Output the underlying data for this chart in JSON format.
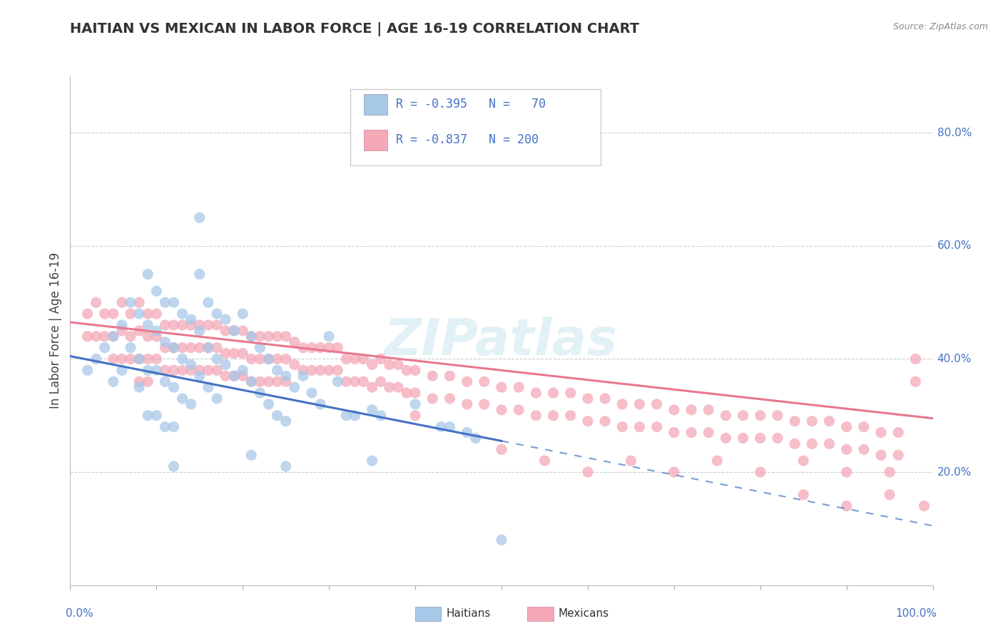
{
  "title": "HAITIAN VS MEXICAN IN LABOR FORCE | AGE 16-19 CORRELATION CHART",
  "source": "Source: ZipAtlas.com",
  "ylabel": "In Labor Force | Age 16-19",
  "right_ytick_labels": [
    "80.0%",
    "60.0%",
    "40.0%",
    "20.0%"
  ],
  "right_ytick_vals": [
    0.8,
    0.6,
    0.4,
    0.2
  ],
  "haitian_color": "#a8c8e8",
  "mexican_color": "#f4a8b8",
  "haitian_line_color": "#4472c4",
  "mexican_line_color": "#e87890",
  "watermark": "ZIPatlas",
  "haitian_line": {
    "x0": 0.0,
    "y0": 0.405,
    "x1": 0.5,
    "y1": 0.255,
    "x_dash_end": 1.0
  },
  "mexican_line": {
    "x0": 0.0,
    "y0": 0.465,
    "x1": 1.0,
    "y1": 0.295
  },
  "ylim": [
    0.0,
    0.9
  ],
  "xlim": [
    0.0,
    1.0
  ],
  "haitian_dots": [
    [
      0.02,
      0.38
    ],
    [
      0.03,
      0.4
    ],
    [
      0.04,
      0.42
    ],
    [
      0.05,
      0.44
    ],
    [
      0.05,
      0.36
    ],
    [
      0.06,
      0.46
    ],
    [
      0.06,
      0.38
    ],
    [
      0.07,
      0.5
    ],
    [
      0.07,
      0.42
    ],
    [
      0.08,
      0.48
    ],
    [
      0.08,
      0.4
    ],
    [
      0.08,
      0.35
    ],
    [
      0.09,
      0.55
    ],
    [
      0.09,
      0.46
    ],
    [
      0.09,
      0.38
    ],
    [
      0.09,
      0.3
    ],
    [
      0.1,
      0.52
    ],
    [
      0.1,
      0.45
    ],
    [
      0.1,
      0.38
    ],
    [
      0.1,
      0.3
    ],
    [
      0.11,
      0.5
    ],
    [
      0.11,
      0.43
    ],
    [
      0.11,
      0.36
    ],
    [
      0.11,
      0.28
    ],
    [
      0.12,
      0.5
    ],
    [
      0.12,
      0.42
    ],
    [
      0.12,
      0.35
    ],
    [
      0.12,
      0.28
    ],
    [
      0.13,
      0.48
    ],
    [
      0.13,
      0.4
    ],
    [
      0.13,
      0.33
    ],
    [
      0.14,
      0.47
    ],
    [
      0.14,
      0.39
    ],
    [
      0.14,
      0.32
    ],
    [
      0.15,
      0.65
    ],
    [
      0.15,
      0.55
    ],
    [
      0.15,
      0.45
    ],
    [
      0.15,
      0.37
    ],
    [
      0.16,
      0.5
    ],
    [
      0.16,
      0.42
    ],
    [
      0.16,
      0.35
    ],
    [
      0.17,
      0.48
    ],
    [
      0.17,
      0.4
    ],
    [
      0.17,
      0.33
    ],
    [
      0.18,
      0.47
    ],
    [
      0.18,
      0.39
    ],
    [
      0.19,
      0.45
    ],
    [
      0.19,
      0.37
    ],
    [
      0.2,
      0.48
    ],
    [
      0.2,
      0.38
    ],
    [
      0.21,
      0.44
    ],
    [
      0.21,
      0.36
    ],
    [
      0.22,
      0.42
    ],
    [
      0.22,
      0.34
    ],
    [
      0.23,
      0.4
    ],
    [
      0.23,
      0.32
    ],
    [
      0.24,
      0.38
    ],
    [
      0.24,
      0.3
    ],
    [
      0.25,
      0.37
    ],
    [
      0.25,
      0.29
    ],
    [
      0.26,
      0.35
    ],
    [
      0.27,
      0.37
    ],
    [
      0.28,
      0.34
    ],
    [
      0.29,
      0.32
    ],
    [
      0.3,
      0.44
    ],
    [
      0.31,
      0.36
    ],
    [
      0.32,
      0.3
    ],
    [
      0.33,
      0.3
    ],
    [
      0.35,
      0.31
    ],
    [
      0.36,
      0.3
    ],
    [
      0.4,
      0.32
    ],
    [
      0.43,
      0.28
    ],
    [
      0.44,
      0.28
    ],
    [
      0.46,
      0.27
    ],
    [
      0.47,
      0.26
    ],
    [
      0.12,
      0.21
    ],
    [
      0.21,
      0.23
    ],
    [
      0.25,
      0.21
    ],
    [
      0.35,
      0.22
    ],
    [
      0.5,
      0.08
    ]
  ],
  "mexican_dots": [
    [
      0.02,
      0.48
    ],
    [
      0.02,
      0.44
    ],
    [
      0.03,
      0.5
    ],
    [
      0.03,
      0.44
    ],
    [
      0.04,
      0.48
    ],
    [
      0.04,
      0.44
    ],
    [
      0.05,
      0.48
    ],
    [
      0.05,
      0.44
    ],
    [
      0.05,
      0.4
    ],
    [
      0.06,
      0.5
    ],
    [
      0.06,
      0.45
    ],
    [
      0.06,
      0.4
    ],
    [
      0.07,
      0.48
    ],
    [
      0.07,
      0.44
    ],
    [
      0.07,
      0.4
    ],
    [
      0.08,
      0.5
    ],
    [
      0.08,
      0.45
    ],
    [
      0.08,
      0.4
    ],
    [
      0.08,
      0.36
    ],
    [
      0.09,
      0.48
    ],
    [
      0.09,
      0.44
    ],
    [
      0.09,
      0.4
    ],
    [
      0.09,
      0.36
    ],
    [
      0.1,
      0.48
    ],
    [
      0.1,
      0.44
    ],
    [
      0.1,
      0.4
    ],
    [
      0.11,
      0.46
    ],
    [
      0.11,
      0.42
    ],
    [
      0.11,
      0.38
    ],
    [
      0.12,
      0.46
    ],
    [
      0.12,
      0.42
    ],
    [
      0.12,
      0.38
    ],
    [
      0.13,
      0.46
    ],
    [
      0.13,
      0.42
    ],
    [
      0.13,
      0.38
    ],
    [
      0.14,
      0.46
    ],
    [
      0.14,
      0.42
    ],
    [
      0.14,
      0.38
    ],
    [
      0.15,
      0.46
    ],
    [
      0.15,
      0.42
    ],
    [
      0.15,
      0.38
    ],
    [
      0.16,
      0.46
    ],
    [
      0.16,
      0.42
    ],
    [
      0.16,
      0.38
    ],
    [
      0.17,
      0.46
    ],
    [
      0.17,
      0.42
    ],
    [
      0.17,
      0.38
    ],
    [
      0.18,
      0.45
    ],
    [
      0.18,
      0.41
    ],
    [
      0.18,
      0.37
    ],
    [
      0.19,
      0.45
    ],
    [
      0.19,
      0.41
    ],
    [
      0.19,
      0.37
    ],
    [
      0.2,
      0.45
    ],
    [
      0.2,
      0.41
    ],
    [
      0.2,
      0.37
    ],
    [
      0.21,
      0.44
    ],
    [
      0.21,
      0.4
    ],
    [
      0.21,
      0.36
    ],
    [
      0.22,
      0.44
    ],
    [
      0.22,
      0.4
    ],
    [
      0.22,
      0.36
    ],
    [
      0.23,
      0.44
    ],
    [
      0.23,
      0.4
    ],
    [
      0.23,
      0.36
    ],
    [
      0.24,
      0.44
    ],
    [
      0.24,
      0.4
    ],
    [
      0.24,
      0.36
    ],
    [
      0.25,
      0.44
    ],
    [
      0.25,
      0.4
    ],
    [
      0.25,
      0.36
    ],
    [
      0.26,
      0.43
    ],
    [
      0.26,
      0.39
    ],
    [
      0.27,
      0.42
    ],
    [
      0.27,
      0.38
    ],
    [
      0.28,
      0.42
    ],
    [
      0.28,
      0.38
    ],
    [
      0.29,
      0.42
    ],
    [
      0.29,
      0.38
    ],
    [
      0.3,
      0.42
    ],
    [
      0.3,
      0.38
    ],
    [
      0.31,
      0.42
    ],
    [
      0.31,
      0.38
    ],
    [
      0.32,
      0.4
    ],
    [
      0.32,
      0.36
    ],
    [
      0.33,
      0.4
    ],
    [
      0.33,
      0.36
    ],
    [
      0.34,
      0.4
    ],
    [
      0.34,
      0.36
    ],
    [
      0.35,
      0.39
    ],
    [
      0.35,
      0.35
    ],
    [
      0.36,
      0.4
    ],
    [
      0.36,
      0.36
    ],
    [
      0.37,
      0.39
    ],
    [
      0.37,
      0.35
    ],
    [
      0.38,
      0.39
    ],
    [
      0.38,
      0.35
    ],
    [
      0.39,
      0.38
    ],
    [
      0.39,
      0.34
    ],
    [
      0.4,
      0.38
    ],
    [
      0.4,
      0.34
    ],
    [
      0.4,
      0.3
    ],
    [
      0.42,
      0.37
    ],
    [
      0.42,
      0.33
    ],
    [
      0.44,
      0.37
    ],
    [
      0.44,
      0.33
    ],
    [
      0.46,
      0.36
    ],
    [
      0.46,
      0.32
    ],
    [
      0.48,
      0.36
    ],
    [
      0.48,
      0.32
    ],
    [
      0.5,
      0.35
    ],
    [
      0.5,
      0.31
    ],
    [
      0.52,
      0.35
    ],
    [
      0.52,
      0.31
    ],
    [
      0.54,
      0.34
    ],
    [
      0.54,
      0.3
    ],
    [
      0.56,
      0.34
    ],
    [
      0.56,
      0.3
    ],
    [
      0.58,
      0.34
    ],
    [
      0.58,
      0.3
    ],
    [
      0.6,
      0.33
    ],
    [
      0.6,
      0.29
    ],
    [
      0.62,
      0.33
    ],
    [
      0.62,
      0.29
    ],
    [
      0.64,
      0.32
    ],
    [
      0.64,
      0.28
    ],
    [
      0.66,
      0.32
    ],
    [
      0.66,
      0.28
    ],
    [
      0.68,
      0.32
    ],
    [
      0.68,
      0.28
    ],
    [
      0.7,
      0.31
    ],
    [
      0.7,
      0.27
    ],
    [
      0.72,
      0.31
    ],
    [
      0.72,
      0.27
    ],
    [
      0.74,
      0.31
    ],
    [
      0.74,
      0.27
    ],
    [
      0.76,
      0.3
    ],
    [
      0.76,
      0.26
    ],
    [
      0.78,
      0.3
    ],
    [
      0.78,
      0.26
    ],
    [
      0.8,
      0.3
    ],
    [
      0.8,
      0.26
    ],
    [
      0.82,
      0.3
    ],
    [
      0.82,
      0.26
    ],
    [
      0.84,
      0.29
    ],
    [
      0.84,
      0.25
    ],
    [
      0.86,
      0.29
    ],
    [
      0.86,
      0.25
    ],
    [
      0.88,
      0.29
    ],
    [
      0.88,
      0.25
    ],
    [
      0.9,
      0.28
    ],
    [
      0.9,
      0.24
    ],
    [
      0.92,
      0.28
    ],
    [
      0.92,
      0.24
    ],
    [
      0.94,
      0.27
    ],
    [
      0.94,
      0.23
    ],
    [
      0.96,
      0.27
    ],
    [
      0.96,
      0.23
    ],
    [
      0.98,
      0.4
    ],
    [
      0.98,
      0.36
    ],
    [
      0.99,
      0.14
    ],
    [
      0.6,
      0.2
    ],
    [
      0.65,
      0.22
    ],
    [
      0.7,
      0.2
    ],
    [
      0.75,
      0.22
    ],
    [
      0.8,
      0.2
    ],
    [
      0.85,
      0.22
    ],
    [
      0.9,
      0.2
    ],
    [
      0.95,
      0.2
    ],
    [
      0.55,
      0.22
    ],
    [
      0.5,
      0.24
    ],
    [
      0.85,
      0.16
    ],
    [
      0.9,
      0.14
    ],
    [
      0.95,
      0.16
    ]
  ]
}
